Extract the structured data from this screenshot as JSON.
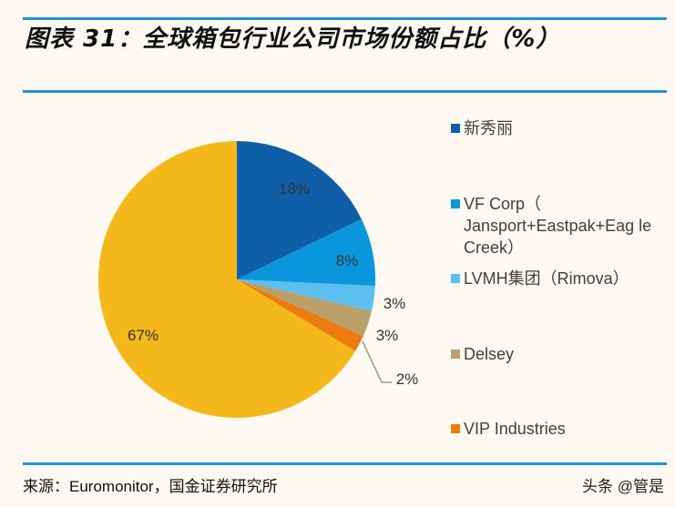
{
  "title": "图表 31：全球箱包行业公司市场份额占比（%）",
  "source": "来源：Euromonitor，国金证券研究所",
  "watermark": "头条 @管是",
  "chart_data": {
    "type": "pie",
    "title": "图表 31：全球箱包行业公司市场份额占比（%）",
    "start": "top, clockwise",
    "slices": [
      {
        "name": "新秀丽",
        "value": 18,
        "label": "18%",
        "color": "#0e5fa8"
      },
      {
        "name": "VF Corp（Jansport+Eastpak+Eagle Creek）",
        "value": 8,
        "label": "8%",
        "color": "#0a96dc"
      },
      {
        "name": "LVMH集团（Rimova）",
        "value": 3,
        "label": "3%",
        "color": "#5bc0ef"
      },
      {
        "name": "Delsey",
        "value": 3,
        "label": "3%",
        "color": "#b9a06a"
      },
      {
        "name": "VIP Industries",
        "value": 2,
        "label": "2%",
        "color": "#ec7c10"
      },
      {
        "name": "",
        "value": 67,
        "label": "67%",
        "color": "#f5b81a"
      }
    ],
    "legend": [
      "新秀丽",
      "VF Corp（ Jansport+Eastpak+Eag le Creek）",
      "LVMH集团（Rimova）",
      "Delsey",
      "VIP Industries"
    ],
    "legend_placement": "right"
  }
}
